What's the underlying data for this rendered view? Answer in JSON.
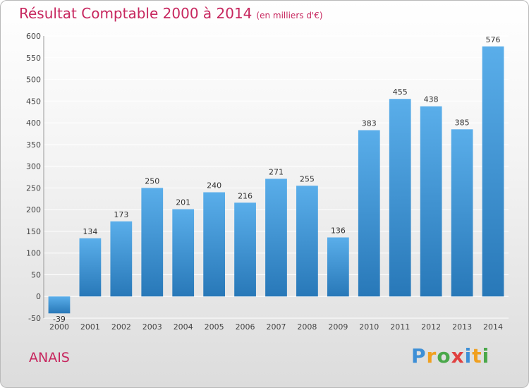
{
  "title": "Résultat Comptable 2000 à 2014",
  "subtitle": "(en milliers d'€)",
  "commune": "ANAIS",
  "logo": {
    "letters": [
      "P",
      "r",
      "o",
      "x",
      "i",
      "t",
      "i"
    ]
  },
  "colors": {
    "title": "#c7265e",
    "bar_top": "#5aaeea",
    "bar_bottom": "#2878b8",
    "grid": "#ffffff"
  },
  "chart_data": {
    "type": "bar",
    "title": "Résultat Comptable 2000 à 2014",
    "subtitle": "(en milliers d'€)",
    "xlabel": "",
    "ylabel": "",
    "categories": [
      "2000",
      "2001",
      "2002",
      "2003",
      "2004",
      "2005",
      "2006",
      "2007",
      "2008",
      "2009",
      "2010",
      "2011",
      "2012",
      "2013",
      "2014"
    ],
    "values": [
      -39,
      134,
      173,
      250,
      201,
      240,
      216,
      271,
      255,
      136,
      383,
      455,
      438,
      385,
      576
    ],
    "ylim": [
      -50,
      600
    ],
    "yticks": [
      -50,
      0,
      50,
      100,
      150,
      200,
      250,
      300,
      350,
      400,
      450,
      500,
      550,
      600
    ],
    "grid": true
  }
}
